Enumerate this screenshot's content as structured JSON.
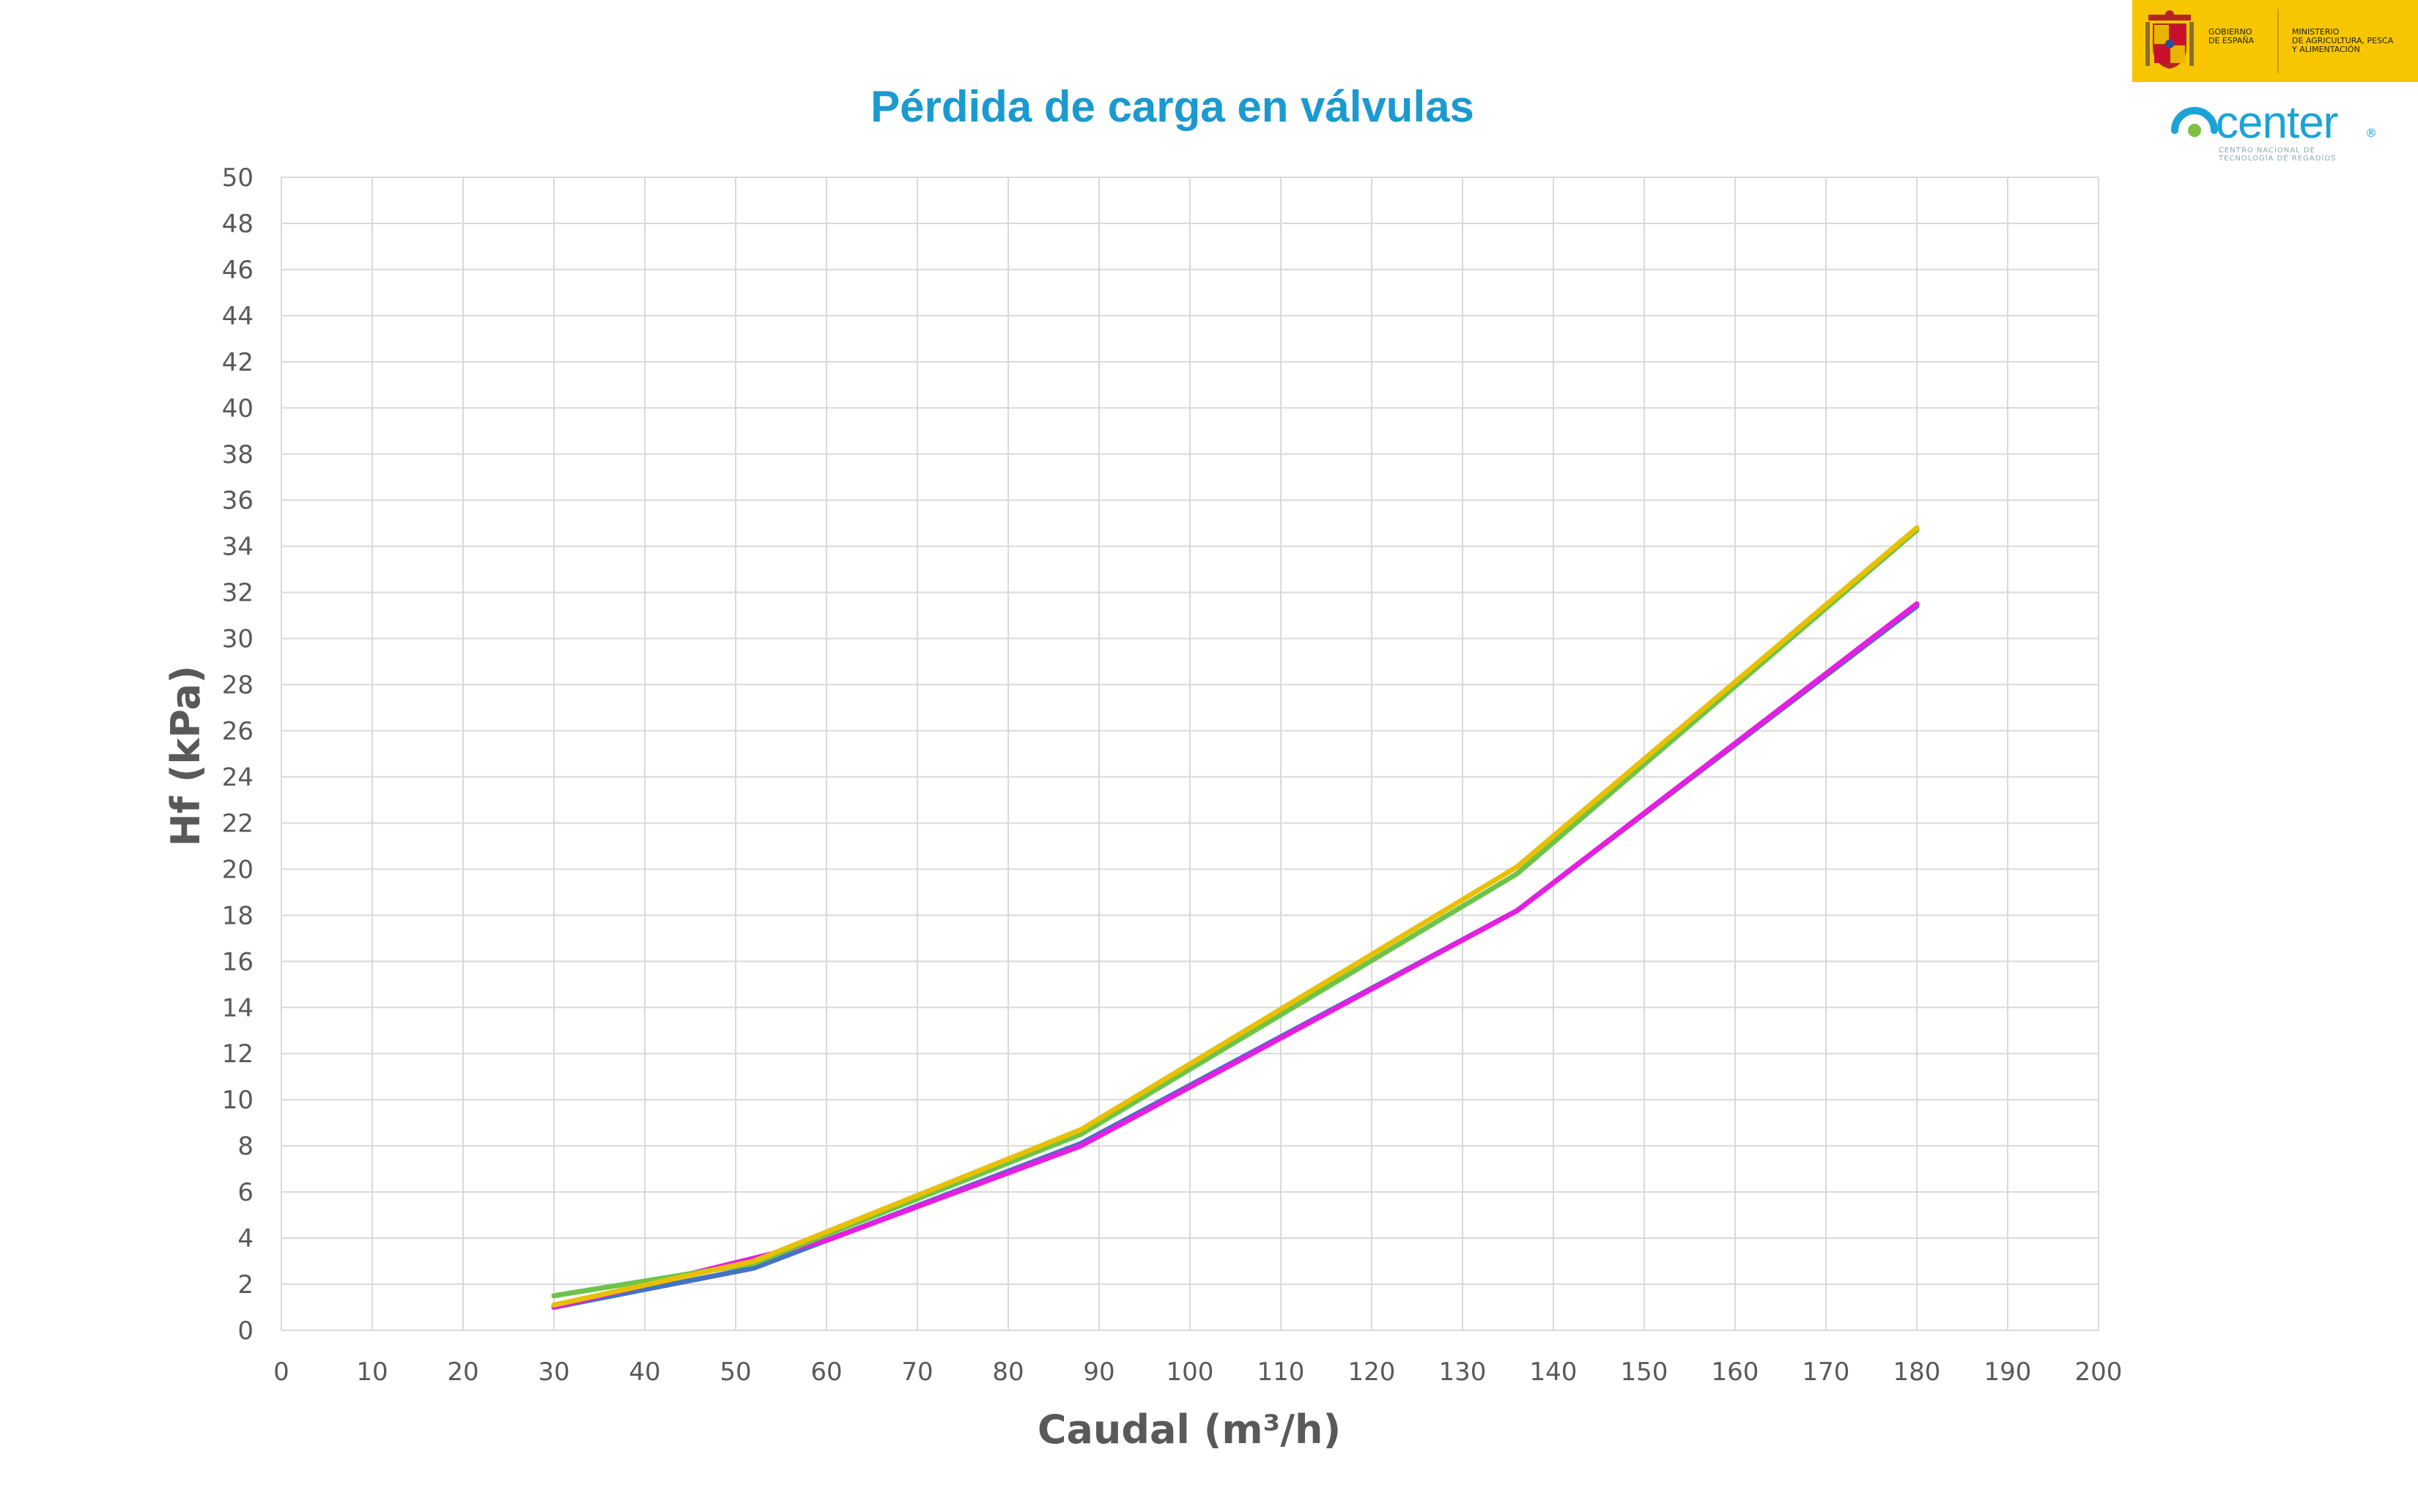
{
  "header": {
    "government_text": "GOBIERNO\nDE ESPAÑA",
    "ministry_text": "MINISTERIO\nDE AGRICULTURA, PESCA\nY ALIMENTACIÓN",
    "center_logo_word": "center",
    "center_logo_mark": "®",
    "center_logo_subtitle": "CENTRO NACIONAL DE\nTECNOLOGÍA DE REGADÍOS"
  },
  "colors": {
    "title": "#1a9ad0",
    "grid": "#d9d9d9",
    "axis_text": "#595959",
    "banner": "#f7c600"
  },
  "chart_data": {
    "type": "line",
    "title": "Pérdida de carga en válvulas",
    "xlabel": "Caudal (m³/h)",
    "ylabel": "Hf (kPa)",
    "xlim": [
      0,
      200
    ],
    "ylim": [
      0,
      50
    ],
    "x_ticks": [
      "0",
      "10",
      "20",
      "30",
      "40",
      "50",
      "60",
      "70",
      "80",
      "90",
      "100",
      "110",
      "120",
      "130",
      "140",
      "150",
      "160",
      "170",
      "180",
      "190",
      "200"
    ],
    "y_ticks": [
      "0",
      "2",
      "4",
      "6",
      "8",
      "10",
      "12",
      "14",
      "16",
      "18",
      "20",
      "22",
      "24",
      "26",
      "28",
      "30",
      "32",
      "34",
      "36",
      "38",
      "40",
      "42",
      "44",
      "46",
      "48",
      "50"
    ],
    "grid": true,
    "legend": "none",
    "series": [
      {
        "color": "#4472c4",
        "x": [
          30,
          52,
          88,
          136,
          180
        ],
        "y": [
          1.0,
          2.7,
          8.1,
          18.2,
          31.4
        ]
      },
      {
        "color": "#e61ee1",
        "x": [
          30,
          60,
          88,
          136,
          180
        ],
        "y": [
          1.0,
          3.9,
          8.0,
          18.2,
          31.5
        ]
      },
      {
        "color": "#6dc44a",
        "x": [
          30,
          52,
          88,
          136,
          180
        ],
        "y": [
          1.5,
          2.9,
          8.5,
          19.8,
          34.7
        ]
      },
      {
        "color": "#e8c000",
        "x": [
          30,
          52,
          88,
          136,
          180
        ],
        "y": [
          1.1,
          3.0,
          8.7,
          20.1,
          34.8
        ]
      }
    ]
  }
}
